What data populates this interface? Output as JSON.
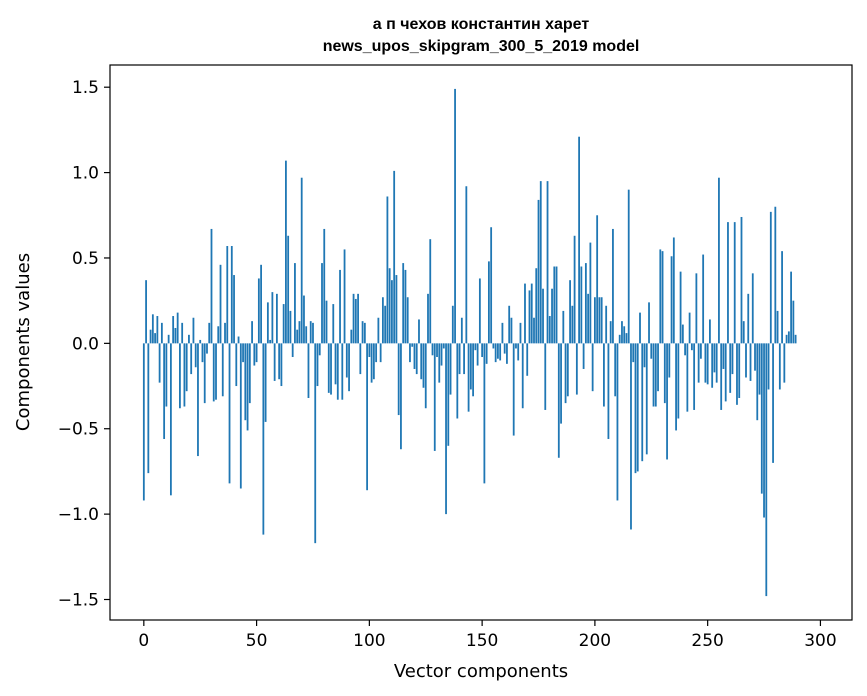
{
  "chart_data": {
    "type": "bar",
    "title_line1": "а п чехов константин харет",
    "title_line2": "news_upos_skipgram_300_5_2019 model",
    "xlabel": "Vector components",
    "ylabel": "Components values",
    "xlim": [
      -15,
      314
    ],
    "ylim": [
      -1.62,
      1.63
    ],
    "xticks": [
      0,
      50,
      100,
      150,
      200,
      250,
      300
    ],
    "yticks": [
      1.5,
      1.0,
      0.5,
      0.0,
      -0.5,
      -1.0,
      -1.5
    ],
    "ytick_labels": [
      "1.5",
      "1.0",
      "0.5",
      "0.0",
      "−0.5",
      "−1.0",
      "−1.5"
    ],
    "grid": false,
    "bar_color": "#1f77b4",
    "values": [
      -0.92,
      0.37,
      -0.76,
      0.08,
      0.17,
      0.06,
      0.16,
      -0.23,
      0.12,
      -0.56,
      -0.37,
      0.05,
      -0.89,
      0.16,
      0.09,
      0.18,
      -0.38,
      0.12,
      -0.37,
      -0.28,
      0.05,
      -0.18,
      0.15,
      -0.14,
      -0.66,
      0.02,
      -0.11,
      -0.35,
      -0.06,
      0.12,
      0.67,
      -0.34,
      -0.33,
      0.1,
      0.46,
      -0.31,
      0.12,
      0.57,
      -0.82,
      0.57,
      0.4,
      -0.25,
      0.04,
      -0.85,
      -0.11,
      -0.45,
      -0.51,
      -0.35,
      0.13,
      -0.13,
      -0.11,
      0.38,
      0.46,
      -1.12,
      -0.46,
      0.24,
      0.02,
      0.3,
      -0.22,
      0.29,
      -0.21,
      -0.25,
      0.23,
      1.07,
      0.63,
      0.19,
      -0.08,
      0.47,
      0.08,
      0.13,
      0.97,
      0.28,
      0.1,
      -0.32,
      0.13,
      0.12,
      -1.17,
      -0.25,
      -0.07,
      0.47,
      0.67,
      0.25,
      -0.29,
      -0.3,
      0.23,
      -0.24,
      -0.33,
      0.43,
      -0.33,
      0.55,
      -0.2,
      -0.28,
      0.08,
      0.29,
      0.26,
      0.29,
      -0.18,
      0.13,
      0.12,
      -0.86,
      -0.08,
      -0.23,
      -0.21,
      -0.11,
      0.15,
      -0.11,
      0.27,
      0.22,
      0.86,
      0.44,
      0.37,
      1.01,
      0.4,
      -0.42,
      -0.62,
      0.47,
      0.43,
      0.27,
      -0.11,
      -0.02,
      -0.15,
      -0.18,
      0.14,
      -0.21,
      -0.26,
      -0.38,
      0.29,
      0.61,
      -0.07,
      -0.63,
      -0.08,
      -0.23,
      -0.13,
      -0.03,
      -1.0,
      -0.6,
      -0.3,
      0.22,
      1.49,
      -0.44,
      -0.18,
      0.15,
      -0.18,
      0.92,
      -0.4,
      -0.27,
      -0.31,
      -0.04,
      -0.13,
      0.38,
      -0.08,
      -0.82,
      -0.12,
      0.48,
      0.68,
      -0.03,
      -0.11,
      -0.09,
      -0.1,
      0.12,
      -0.06,
      -0.12,
      0.22,
      0.15,
      -0.54,
      -0.03,
      -0.1,
      0.12,
      -0.38,
      0.35,
      -0.19,
      0.31,
      0.35,
      0.15,
      0.44,
      0.84,
      0.95,
      0.32,
      -0.39,
      0.95,
      0.16,
      0.32,
      0.45,
      0.45,
      -0.67,
      -0.47,
      0.19,
      -0.35,
      -0.31,
      0.37,
      0.22,
      0.63,
      -0.3,
      1.21,
      0.45,
      -0.15,
      0.47,
      0.29,
      0.59,
      -0.28,
      0.27,
      0.75,
      0.27,
      0.27,
      -0.37,
      0.22,
      -0.56,
      0.13,
      0.67,
      -0.31,
      -0.92,
      0.05,
      0.13,
      0.1,
      0.06,
      0.9,
      -1.09,
      -0.11,
      -0.76,
      -0.75,
      0.18,
      -0.69,
      -0.14,
      -0.65,
      0.24,
      -0.09,
      -0.37,
      -0.37,
      -0.28,
      0.55,
      0.54,
      -0.35,
      -0.68,
      -0.2,
      0.51,
      0.62,
      -0.51,
      -0.44,
      0.42,
      0.11,
      -0.07,
      -0.4,
      0.18,
      -0.04,
      -0.39,
      0.41,
      -0.23,
      -0.09,
      0.52,
      -0.23,
      -0.24,
      0.14,
      -0.26,
      -0.17,
      -0.23,
      0.97,
      -0.39,
      -0.15,
      -0.34,
      0.71,
      -0.29,
      -0.18,
      0.71,
      -0.36,
      -0.32,
      0.74,
      0.13,
      -0.2,
      0.29,
      -0.22,
      0.41,
      -0.16,
      -0.45,
      -0.3,
      -0.88,
      -1.02,
      -1.48,
      -0.27,
      0.77,
      -0.7,
      0.8,
      0.19,
      -0.27,
      0.54,
      -0.23,
      0.05,
      0.07,
      0.42,
      0.25,
      0.05
    ]
  }
}
